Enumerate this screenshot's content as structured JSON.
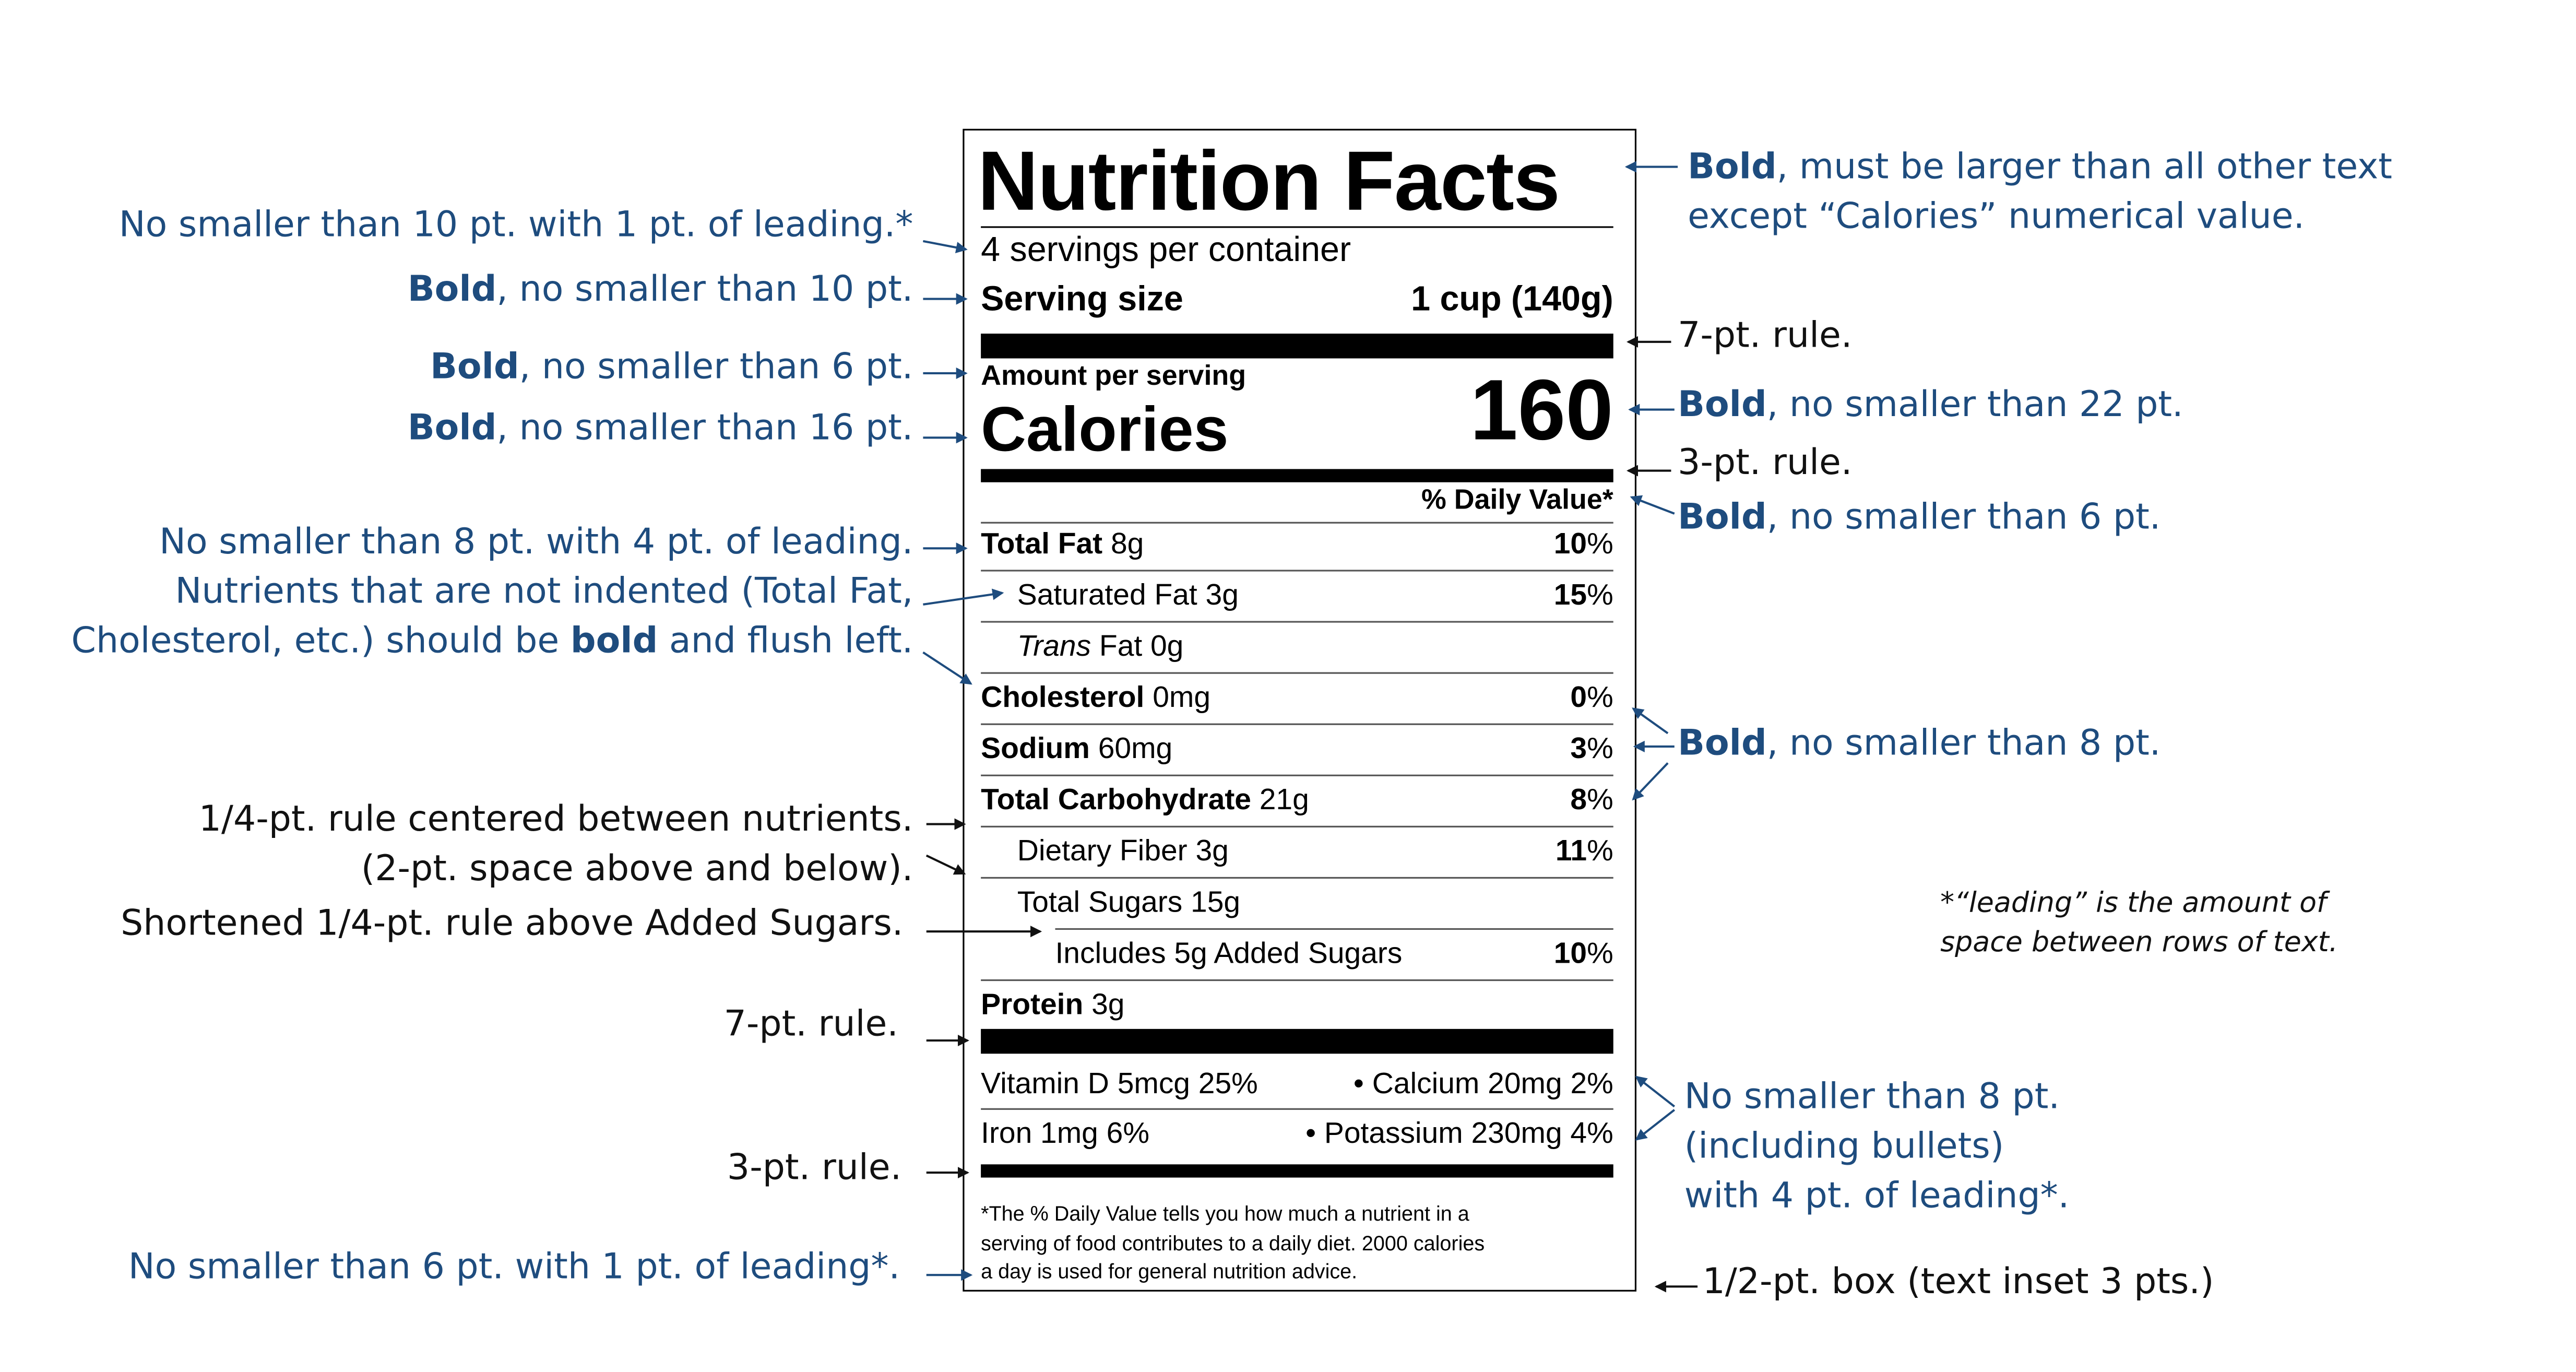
{
  "label": {
    "title": "Nutrition Facts",
    "servings": "4 servings per container",
    "serving_size_label": "Serving size",
    "serving_size_value": "1 cup (140g)",
    "amount_per_serving": "Amount per serving",
    "calories_label": "Calories",
    "calories_value": "160",
    "dv_header": "% Daily Value*",
    "nutrients": [
      {
        "name_bold": "Total Fat",
        "name_italic": "",
        "name_rest": " 8g",
        "pct_bold": "10",
        "pct_unit": "%"
      },
      {
        "name_bold": "",
        "name_italic": "",
        "name_rest": "Saturated Fat 3g",
        "pct_bold": "15",
        "pct_unit": "%"
      },
      {
        "name_bold": "",
        "name_italic": "Trans",
        "name_rest": " Fat 0g",
        "pct_bold": "",
        "pct_unit": ""
      },
      {
        "name_bold": "Cholesterol",
        "name_italic": "",
        "name_rest": " 0mg",
        "pct_bold": "0",
        "pct_unit": "%"
      },
      {
        "name_bold": "Sodium",
        "name_italic": "",
        "name_rest": " 60mg",
        "pct_bold": "3",
        "pct_unit": "%"
      },
      {
        "name_bold": "Total Carbohydrate",
        "name_italic": "",
        "name_rest": " 21g",
        "pct_bold": "8",
        "pct_unit": "%"
      },
      {
        "name_bold": "",
        "name_italic": "",
        "name_rest": "Dietary Fiber 3g",
        "pct_bold": "11",
        "pct_unit": "%"
      },
      {
        "name_bold": "",
        "name_italic": "",
        "name_rest": "Total Sugars 15g",
        "pct_bold": "",
        "pct_unit": ""
      },
      {
        "name_bold": "",
        "name_italic": "",
        "name_rest": "Includes 5g Added Sugars",
        "pct_bold": "10",
        "pct_unit": "%"
      },
      {
        "name_bold": "Protein",
        "name_italic": "",
        "name_rest": " 3g",
        "pct_bold": "",
        "pct_unit": ""
      }
    ],
    "vitamins": [
      {
        "left": "Vitamin D 5mcg 25%",
        "right": "• Calcium 20mg 2%"
      },
      {
        "left": "Iron 1mg 6%",
        "right": "• Potassium 230mg 4%"
      }
    ],
    "footnote": [
      "*The % Daily Value tells you how much a nutrient in a",
      "serving of food contributes to a daily diet. 2000 calories",
      "a day is used for general nutrition advice."
    ]
  },
  "annotations_left": {
    "a1": "No smaller than 10 pt. with 1 pt. of leading.*",
    "a2_bold": "Bold",
    "a2_rest": ", no smaller than 10 pt.",
    "a3_bold": "Bold",
    "a3_rest": ", no smaller than 6 pt.",
    "a4_bold": "Bold",
    "a4_rest": ", no smaller than 16 pt.",
    "a5_line1": "No smaller than 8 pt. with 4 pt. of leading.",
    "a5_line2": "Nutrients that are not indented (Total Fat,",
    "a5_line3_pre": "Cholesterol, etc.) should be ",
    "a5_line3_bold": "bold",
    "a5_line3_post": " and flush left.",
    "a6_line1": "1/4-pt. rule centered between nutrients.",
    "a6_line2": "(2-pt. space above and below).",
    "a7": "Shortened 1/4-pt. rule above Added Sugars.",
    "a8": "7-pt. rule.",
    "a9": "3-pt. rule.",
    "a10": "No smaller than 6 pt. with 1 pt. of leading*."
  },
  "annotations_right": {
    "b1_bold": "Bold",
    "b1_rest": ", must be larger than all other text",
    "b1_line2": "except “Calories” numerical value.",
    "b2": "7-pt. rule.",
    "b3_bold": "Bold",
    "b3_rest": ", no smaller than 22 pt.",
    "b4": "3-pt. rule.",
    "b5_bold": "Bold",
    "b5_rest": ", no smaller than 6 pt.",
    "b6_bold": "Bold",
    "b6_rest": ", no smaller than 8 pt.",
    "b7_line1": "No smaller than 8 pt.",
    "b7_line2": "(including bullets)",
    "b7_line3": "with 4 pt. of leading*.",
    "b8": "1/2-pt. box (text inset 3 pts.)"
  },
  "note": {
    "line1": "*“leading” is the amount of",
    "line2": "space between rows of text."
  },
  "colors": {
    "annotation_blue": "#1e4c7e",
    "annotation_black": "#111111",
    "label_black": "#000000"
  },
  "icons": [
    "arrow-right-icon",
    "arrow-left-icon",
    "arrow-diagonal-icon"
  ]
}
